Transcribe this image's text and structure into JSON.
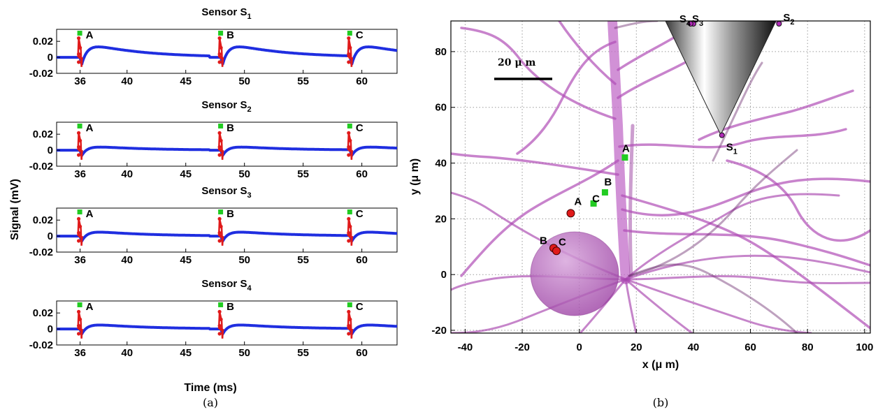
{
  "colors": {
    "trace": "#1f2ee0",
    "spike": "#e01a1a",
    "green_marker": "#22cc22",
    "neuron": "#b04fb6",
    "neuron_dark": "#7a2f7e",
    "grid": "#9a9a9a"
  },
  "panel_a": {
    "ylabel": "Signal (mV)",
    "xlabel": "Time (ms)",
    "caption": "(a)",
    "x_ticks": [
      "36",
      "40",
      "45",
      "50",
      "55",
      "60"
    ],
    "y_ticks": [
      "0.02",
      "0",
      "-0.02"
    ],
    "subplots": [
      {
        "title_main": "Sensor S",
        "title_sub": "1",
        "marker_labels": [
          "A",
          "B",
          "C"
        ]
      },
      {
        "title_main": "Sensor S",
        "title_sub": "2",
        "marker_labels": [
          "A",
          "B",
          "C"
        ]
      },
      {
        "title_main": "Sensor S",
        "title_sub": "3",
        "marker_labels": [
          "A",
          "B",
          "C"
        ]
      },
      {
        "title_main": "Sensor S",
        "title_sub": "4",
        "marker_labels": [
          "A",
          "B",
          "C"
        ]
      }
    ]
  },
  "panel_b": {
    "xlabel": "x (μ m)",
    "ylabel": "y (μ m)",
    "caption": "(b)",
    "scale_bar_label": "20 μ m",
    "x_ticks": [
      "-40",
      "-20",
      "0",
      "20",
      "40",
      "60",
      "80",
      "100"
    ],
    "y_ticks": [
      "80",
      "60",
      "40",
      "20",
      "0",
      "-20"
    ],
    "sensor_labels": [
      {
        "main": "S",
        "sub": "4"
      },
      {
        "main": "S",
        "sub": "3"
      },
      {
        "main": "S",
        "sub": "2"
      },
      {
        "main": "S",
        "sub": "1"
      }
    ],
    "source_labels": [
      "A",
      "B",
      "C"
    ],
    "site_labels": [
      "A",
      "B",
      "C"
    ]
  },
  "chart_data": [
    {
      "type": "line",
      "title": "Sensor S1 / S2 / S3 / S4",
      "xlabel": "Time (ms)",
      "ylabel": "Signal (mV)",
      "xlim": [
        34,
        63
      ],
      "ylim": [
        -0.02,
        0.035
      ],
      "grid": false,
      "spike_times": [
        36,
        48,
        59
      ],
      "spike_labels": [
        "A",
        "B",
        "C"
      ],
      "series": [
        {
          "name": "Sensor S1",
          "amplitude": 1.0,
          "trough": -0.018,
          "peak": 0.013
        },
        {
          "name": "Sensor S2",
          "amplitude": 0.6,
          "trough": -0.011,
          "peak": 0.004
        },
        {
          "name": "Sensor S3",
          "amplitude": 0.6,
          "trough": -0.011,
          "peak": 0.005
        },
        {
          "name": "Sensor S4",
          "amplitude": 0.6,
          "trough": -0.011,
          "peak": 0.005
        }
      ]
    },
    {
      "type": "scatter",
      "xlabel": "x (μ m)",
      "ylabel": "y (μ m)",
      "xlim": [
        -45,
        102
      ],
      "ylim": [
        -21,
        91
      ],
      "grid": true,
      "sensors": [
        {
          "name": "S1",
          "x": 50,
          "y": 50
        },
        {
          "name": "S2",
          "x": 70,
          "y": 90
        },
        {
          "name": "S3",
          "x": 40,
          "y": 90
        },
        {
          "name": "S4",
          "x": 39,
          "y": 90
        }
      ],
      "true_sources": [
        {
          "name": "A",
          "x": -3,
          "y": 22
        },
        {
          "name": "B",
          "x": -9,
          "y": 9.5
        },
        {
          "name": "C",
          "x": -8,
          "y": 8.5
        }
      ],
      "estimated_sources": [
        {
          "name": "A",
          "x": 16,
          "y": 42
        },
        {
          "name": "B",
          "x": 9,
          "y": 29.5
        },
        {
          "name": "C",
          "x": 5,
          "y": 25.5
        }
      ]
    }
  ]
}
